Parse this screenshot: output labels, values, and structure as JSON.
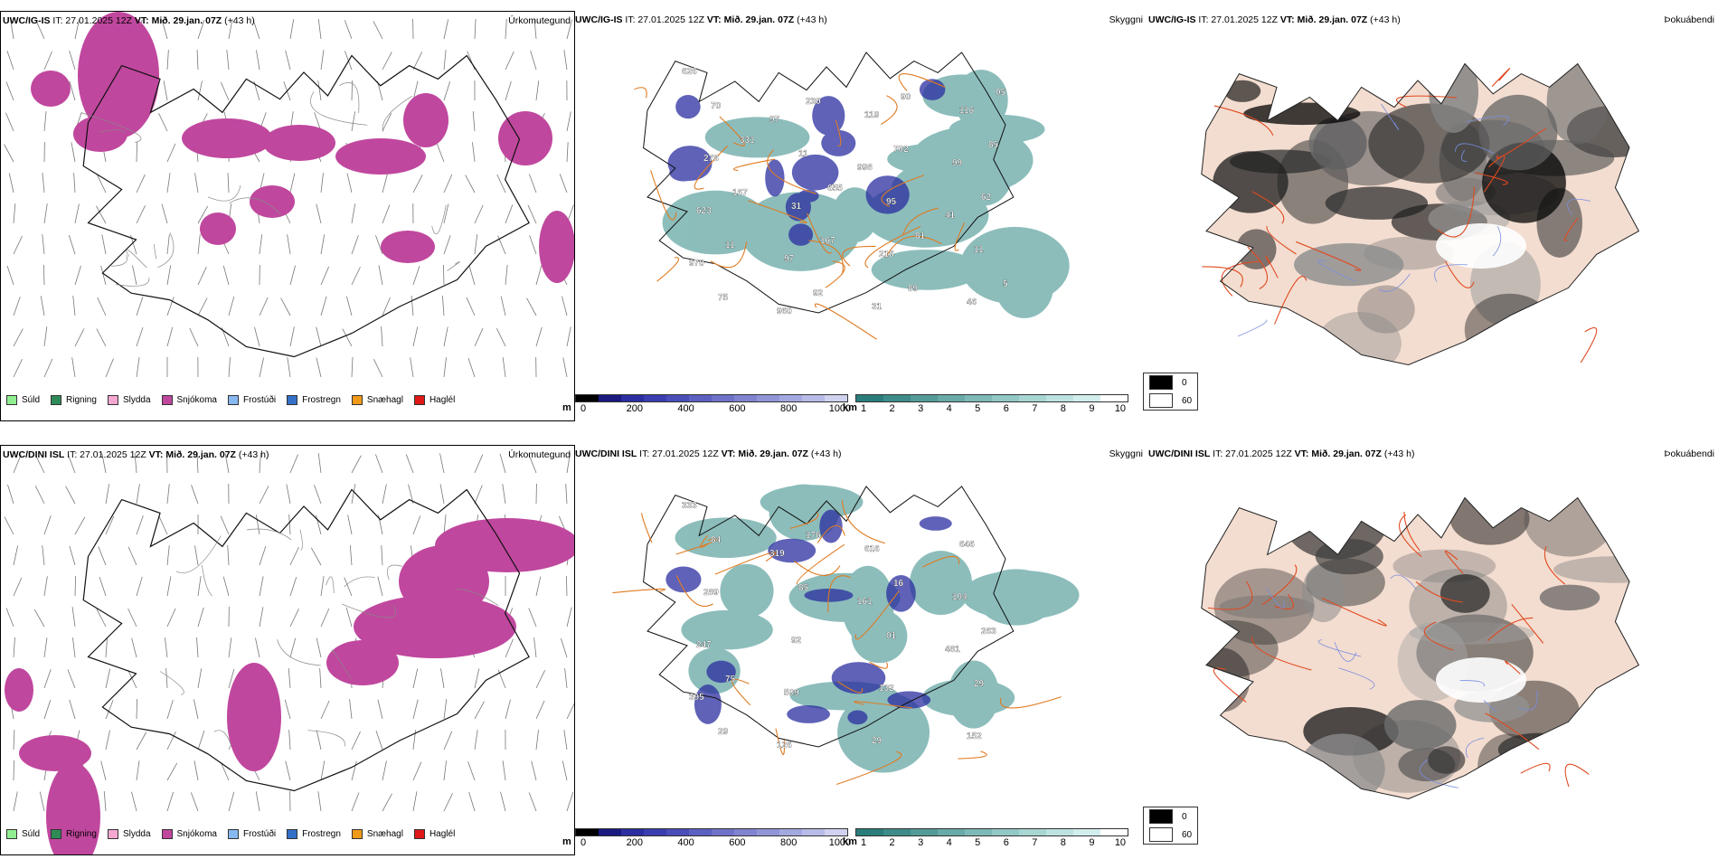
{
  "rows": [
    {
      "model": "UWC/IG-IS",
      "it": "IT: 27.01.2025 12Z",
      "vt": "VT: Mið. 29.jan. 07Z",
      "lead": "(+43 h)",
      "panels": {
        "precip_title": "Úrkomutegund",
        "cloud_title": "Skyggni",
        "fog_title": "Þokuábendi"
      },
      "visibility_labels": [
        "626",
        "97",
        "998",
        "41",
        "970",
        "960",
        "119",
        "99",
        "623",
        "97",
        "31",
        "116",
        "278",
        "31",
        "216",
        "46",
        "70",
        "11",
        "95",
        "11",
        "75",
        "230",
        "702",
        "62",
        "11",
        "92",
        "90",
        "85",
        "167",
        "167",
        "89",
        "05",
        "331",
        "655",
        "81",
        "5"
      ]
    },
    {
      "model": "UWC/DINI ISL",
      "it": "IT: 27.01.2025 12Z",
      "vt": "VT: Mið. 29.jan. 07Z",
      "lead": "(+43 h)",
      "panels": {
        "precip_title": "Úrkomutegund",
        "cloud_title": "Skyggni",
        "fog_title": "Þokuábendi"
      },
      "visibility_labels": [
        "333",
        "319",
        "161",
        "481",
        "395",
        "126",
        "616",
        "104",
        "247",
        "509",
        "29",
        "646",
        "289",
        "92",
        "132",
        "152",
        "84",
        "85",
        "01",
        "29",
        "29",
        "176",
        "16",
        "263",
        "75"
      ]
    }
  ],
  "precip_legend": [
    {
      "label": "Súld",
      "color": "#90ee90"
    },
    {
      "label": "Rigning",
      "color": "#2e8b57"
    },
    {
      "label": "Slydda",
      "color": "#f4a7d0"
    },
    {
      "label": "Snjókoma",
      "color": "#c0479e"
    },
    {
      "label": "Frostúði",
      "color": "#87b8f0"
    },
    {
      "label": "Frostregn",
      "color": "#3470c8"
    },
    {
      "label": "Snæhagl",
      "color": "#f09a1a"
    },
    {
      "label": "Haglél",
      "color": "#e01818"
    }
  ],
  "cloudbase_bar": {
    "unit": "m",
    "ticks": [
      "0",
      "200",
      "400",
      "600",
      "800",
      "1000"
    ],
    "colors": [
      "#000000",
      "#1a1a80",
      "#2a2ea0",
      "#3a3eb0",
      "#4a4eb8",
      "#5c60c0",
      "#6e72c8",
      "#8084d0",
      "#9296d8",
      "#a4a8e0",
      "#b8bbe8",
      "#d0d2f0"
    ]
  },
  "visibility_bar": {
    "unit": "km",
    "ticks": [
      "1",
      "2",
      "3",
      "4",
      "5",
      "6",
      "7",
      "8",
      "9",
      "10"
    ],
    "colors": [
      "#2a7d7a",
      "#3e8c89",
      "#539b98",
      "#68aaa7",
      "#7db9b6",
      "#92c8c5",
      "#a7d6d3",
      "#bce3e1",
      "#d2eeec",
      "#ffffff"
    ]
  },
  "fog_legend": [
    {
      "label": "0",
      "color": "#000000"
    },
    {
      "label": "60",
      "color": "#ffffff"
    }
  ]
}
